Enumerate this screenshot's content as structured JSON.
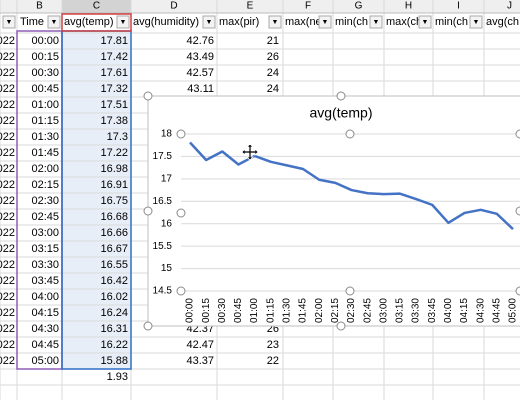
{
  "sheet": {
    "columns": [
      "B",
      "C",
      "D",
      "E",
      "F",
      "G",
      "H",
      "I",
      "J"
    ],
    "headers": [
      "Time",
      "avg(temp)",
      "avg(humidity)",
      "max(pir)",
      "max(ne",
      "min(ch",
      "max(ch",
      "min(ch",
      "avg(ch"
    ],
    "rows": [
      {
        "a": "022",
        "time": "00:00",
        "temp": 17.81,
        "humidity": 42.76,
        "pir": 21
      },
      {
        "a": "022",
        "time": "00:15",
        "temp": 17.42,
        "humidity": 43.49,
        "pir": 26
      },
      {
        "a": "022",
        "time": "00:30",
        "temp": 17.61,
        "humidity": 42.57,
        "pir": 24
      },
      {
        "a": "022",
        "time": "00:45",
        "temp": 17.32,
        "humidity": 43.11,
        "pir": 24
      },
      {
        "a": "022",
        "time": "01:00",
        "temp": 17.51
      },
      {
        "a": "022",
        "time": "01:15",
        "temp": 17.38
      },
      {
        "a": "022",
        "time": "01:30",
        "temp": 17.3
      },
      {
        "a": "022",
        "time": "01:45",
        "temp": 17.22
      },
      {
        "a": "022",
        "time": "02:00",
        "temp": 16.98
      },
      {
        "a": "022",
        "time": "02:15",
        "temp": 16.91
      },
      {
        "a": "022",
        "time": "02:30",
        "temp": 16.75
      },
      {
        "a": "022",
        "time": "02:45",
        "temp": 16.68
      },
      {
        "a": "022",
        "time": "03:00",
        "temp": 16.66
      },
      {
        "a": "022",
        "time": "03:15",
        "temp": 16.67
      },
      {
        "a": "022",
        "time": "03:30",
        "temp": 16.55
      },
      {
        "a": "022",
        "time": "03:45",
        "temp": 16.42
      },
      {
        "a": "022",
        "time": "04:00",
        "temp": 16.02
      },
      {
        "a": "022",
        "time": "04:15",
        "temp": 16.24
      },
      {
        "a": "022",
        "time": "04:30",
        "temp": 16.31,
        "humidity": 42.37,
        "pir": 26
      },
      {
        "a": "022",
        "time": "04:45",
        "temp": 16.22,
        "humidity": 42.47,
        "pir": 23
      },
      {
        "a": "022",
        "time": "05:00",
        "temp": 15.88,
        "humidity": 43.37,
        "pir": 22
      }
    ],
    "total": 1.93
  },
  "chart_data": {
    "type": "line",
    "title": "avg(temp)",
    "categories": [
      "00:00",
      "00:15",
      "00:30",
      "00:45",
      "01:00",
      "01:15",
      "01:30",
      "01:45",
      "02:00",
      "02:15",
      "02:30",
      "02:45",
      "03:00",
      "03:15",
      "03:30",
      "03:45",
      "04:00",
      "04:15",
      "04:30",
      "04:45",
      "05:00"
    ],
    "values": [
      17.81,
      17.42,
      17.61,
      17.32,
      17.51,
      17.38,
      17.3,
      17.22,
      16.98,
      16.91,
      16.75,
      16.68,
      16.66,
      16.67,
      16.55,
      16.42,
      16.02,
      16.24,
      16.31,
      16.22,
      15.88
    ],
    "color": "#4472c4",
    "ylim": [
      14.5,
      18
    ],
    "yticks": [
      14.5,
      15,
      15.5,
      16,
      16.5,
      17,
      17.5,
      18
    ],
    "grid": true
  }
}
